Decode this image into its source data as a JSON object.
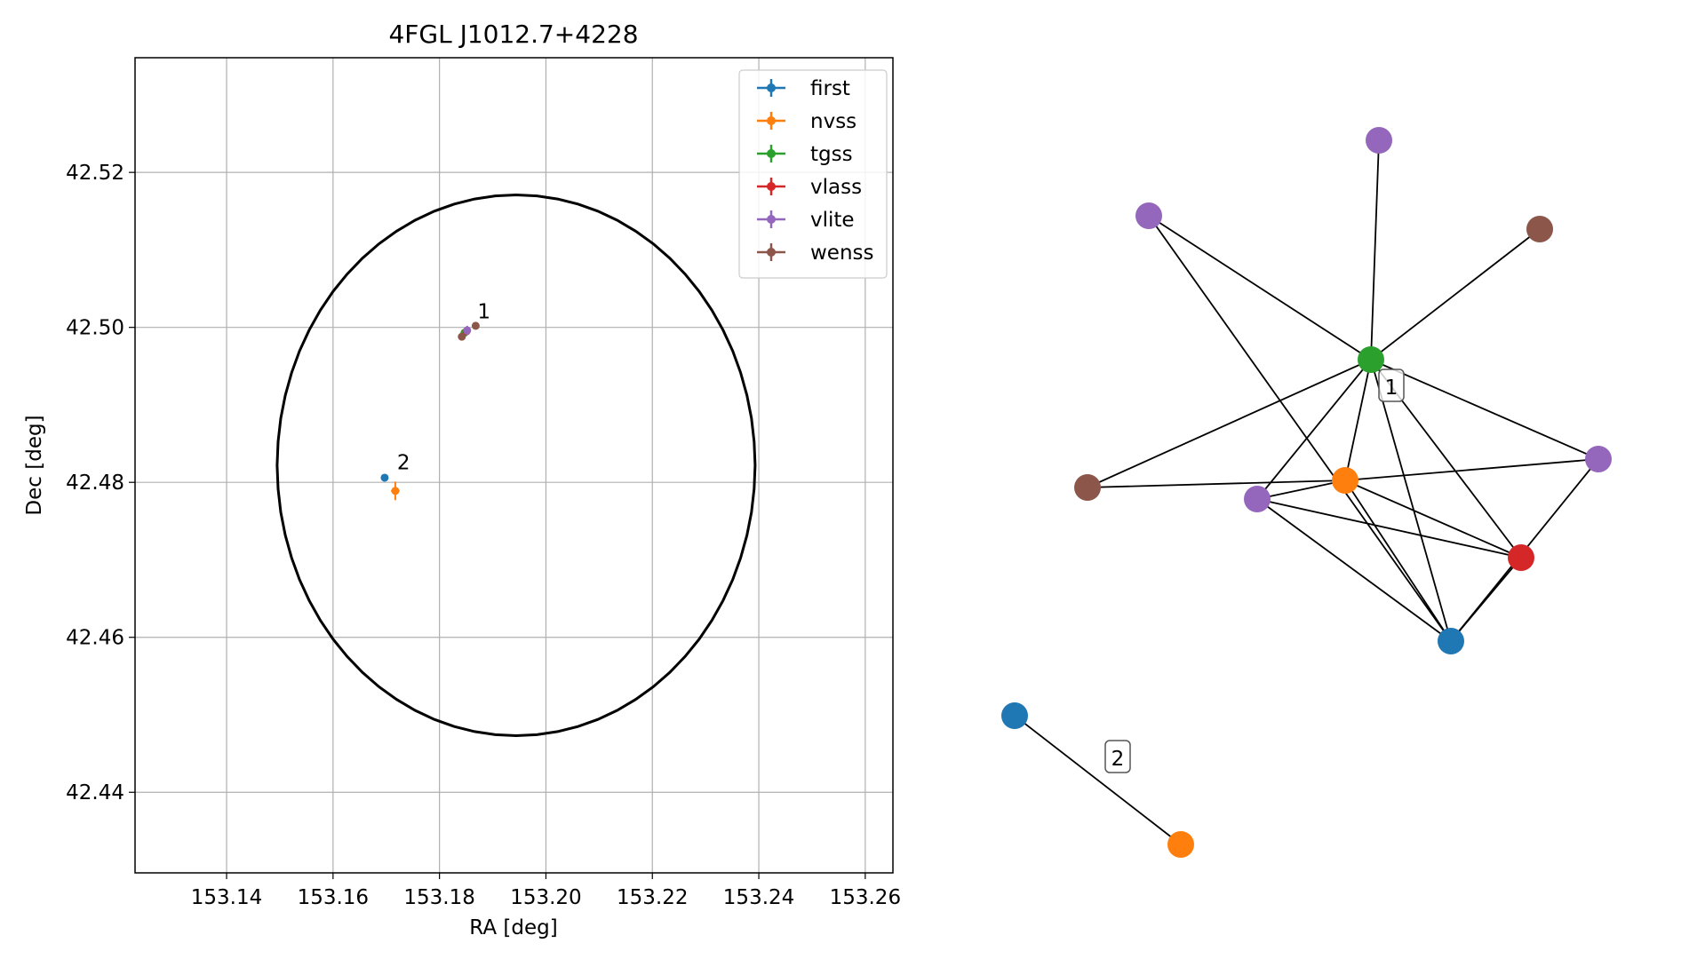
{
  "chart_data": [
    {
      "type": "scatter",
      "title": "4FGL J1012.7+4228",
      "xlabel": "RA [deg]",
      "ylabel": "Dec [deg]",
      "xlim": [
        153.1228,
        153.2652
      ],
      "ylim": [
        42.4296,
        42.5348
      ],
      "xticks": [
        153.14,
        153.16,
        153.18,
        153.2,
        153.22,
        153.24,
        153.26
      ],
      "yticks": [
        42.44,
        42.46,
        42.48,
        42.5,
        42.52
      ],
      "x_tick_labels": [
        "153.14",
        "153.16",
        "153.18",
        "153.20",
        "153.22",
        "153.24",
        "153.26"
      ],
      "y_tick_labels": [
        "42.44",
        "42.46",
        "42.48",
        "42.50",
        "42.52"
      ],
      "grid": true,
      "legend_position": "top-right",
      "ellipse": {
        "center": [
          153.1944,
          42.4822
        ],
        "semi_axis_ra": 0.0449,
        "semi_axis_dec": 0.0349,
        "color": "#000000"
      },
      "series": [
        {
          "name": "first",
          "color": "#1f77b4",
          "points": [
            {
              "x": 153.1697,
              "y": 42.4806,
              "xerr": 0.0002,
              "yerr": 0.0002
            }
          ]
        },
        {
          "name": "nvss",
          "color": "#ff7f0e",
          "points": [
            {
              "x": 153.1717,
              "y": 42.4789,
              "xerr": 0.0008,
              "yerr": 0.0012
            }
          ]
        },
        {
          "name": "tgss",
          "color": "#2ca02c",
          "points": [
            {
              "x": 153.1847,
              "y": 42.4993,
              "xerr": 0.0004,
              "yerr": 0.0004
            }
          ]
        },
        {
          "name": "vlass",
          "color": "#d62728",
          "points": [
            {
              "x": 153.1851,
              "y": 42.4995,
              "xerr": 0.0001,
              "yerr": 0.0001
            }
          ]
        },
        {
          "name": "vlite",
          "color": "#9467bd",
          "points": [
            {
              "x": 153.1852,
              "y": 42.4996,
              "xerr": 0.0006,
              "yerr": 0.0006
            }
          ]
        },
        {
          "name": "wenss",
          "color": "#8c564b",
          "points": [
            {
              "x": 153.1842,
              "y": 42.4988,
              "xerr": 0.0003,
              "yerr": 0.0003
            },
            {
              "x": 153.1868,
              "y": 42.5002,
              "xerr": 0.0003,
              "yerr": 0.0003
            }
          ]
        }
      ],
      "annotations": [
        {
          "text": "1",
          "x": 153.1868,
          "y": 42.5007
        },
        {
          "text": "2",
          "x": 153.1717,
          "y": 42.4812
        }
      ]
    },
    {
      "type": "network",
      "nodes": [
        {
          "id": "n1",
          "series": "vlite",
          "color": "#9467bd"
        },
        {
          "id": "n2",
          "series": "vlite",
          "color": "#9467bd"
        },
        {
          "id": "n3",
          "series": "wenss",
          "color": "#8c564b"
        },
        {
          "id": "n4",
          "series": "tgss",
          "color": "#2ca02c"
        },
        {
          "id": "n5",
          "series": "vlite",
          "color": "#9467bd"
        },
        {
          "id": "n6",
          "series": "wenss",
          "color": "#8c564b"
        },
        {
          "id": "n7",
          "series": "nvss",
          "color": "#ff7f0e"
        },
        {
          "id": "n8",
          "series": "vlite",
          "color": "#9467bd"
        },
        {
          "id": "n9",
          "series": "vlass",
          "color": "#d62728"
        },
        {
          "id": "n10",
          "series": "first",
          "color": "#1f77b4"
        },
        {
          "id": "n11",
          "series": "first",
          "color": "#1f77b4"
        },
        {
          "id": "n12",
          "series": "nvss",
          "color": "#ff7f0e"
        }
      ],
      "edges": [
        [
          "n4",
          "n1"
        ],
        [
          "n4",
          "n2"
        ],
        [
          "n4",
          "n3"
        ],
        [
          "n4",
          "n5"
        ],
        [
          "n4",
          "n6"
        ],
        [
          "n4",
          "n7"
        ],
        [
          "n4",
          "n8"
        ],
        [
          "n4",
          "n9"
        ],
        [
          "n4",
          "n10"
        ],
        [
          "n2",
          "n10"
        ],
        [
          "n6",
          "n7"
        ],
        [
          "n7",
          "n5"
        ],
        [
          "n7",
          "n8"
        ],
        [
          "n7",
          "n9"
        ],
        [
          "n7",
          "n10"
        ],
        [
          "n8",
          "n9"
        ],
        [
          "n8",
          "n10"
        ],
        [
          "n9",
          "n10"
        ],
        [
          "n5",
          "n10"
        ],
        [
          "n11",
          "n12"
        ]
      ],
      "group_labels": [
        {
          "text": "1"
        },
        {
          "text": "2"
        }
      ]
    }
  ]
}
